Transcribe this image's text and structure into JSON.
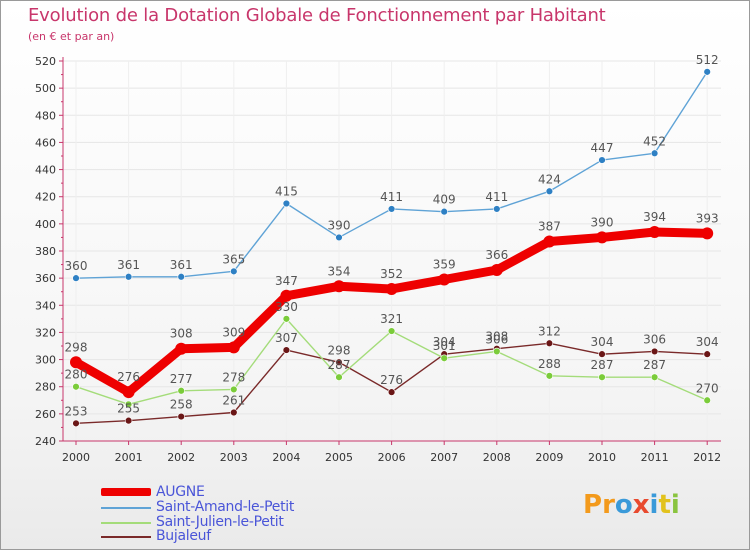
{
  "title": "Evolution de la Dotation Globale de Fonctionnement par Habitant",
  "subtitle": "(en € et par an)",
  "logo": {
    "text": "Proxiti",
    "letter_colors": [
      "#f39a1c",
      "#f39a1c",
      "#3a9ad9",
      "#e84a2f",
      "#3a9ad9",
      "#e2c21c",
      "#8ac43f"
    ]
  },
  "colors": {
    "axis": "#c8366b",
    "grid": "#e6e6e6",
    "legend_text": "#4a55d8",
    "value_label": "#555555"
  },
  "chart_data": {
    "type": "line",
    "title": "Evolution de la Dotation Globale de Fonctionnement par Habitant",
    "subtitle": "(en € et par an)",
    "x": [
      "2000",
      "2001",
      "2002",
      "2003",
      "2004",
      "2005",
      "2006",
      "2007",
      "2008",
      "2009",
      "2010",
      "2011",
      "2012"
    ],
    "ylim": [
      240,
      520
    ],
    "yticks": [
      240,
      260,
      280,
      300,
      320,
      340,
      360,
      380,
      400,
      420,
      440,
      460,
      480,
      500,
      520
    ],
    "grid": true,
    "legend_position": "bottom-left",
    "series": [
      {
        "name": "AUGNE",
        "color": "#ee0000",
        "emphasis": "thick",
        "values": [
          298,
          276,
          308,
          309,
          347,
          354,
          352,
          359,
          366,
          387,
          390,
          394,
          393
        ]
      },
      {
        "name": "Saint-Amand-le-Petit",
        "color": "#5fa3d6",
        "marker_color": "#2e80c4",
        "emphasis": "normal",
        "values": [
          360,
          361,
          361,
          365,
          415,
          390,
          411,
          409,
          411,
          424,
          447,
          452,
          512
        ]
      },
      {
        "name": "Saint-Julien-le-Petit",
        "color": "#a4dc7a",
        "marker_color": "#7bcc3a",
        "emphasis": "normal",
        "values": [
          280,
          267,
          277,
          278,
          330,
          287,
          321,
          301,
          306,
          288,
          287,
          287,
          270
        ]
      },
      {
        "name": "Bujaleuf",
        "color": "#7a2a2a",
        "marker_color": "#6a1616",
        "emphasis": "normal",
        "values": [
          253,
          255,
          258,
          261,
          307,
          298,
          276,
          304,
          308,
          312,
          304,
          306,
          304
        ]
      }
    ],
    "value_labels": {
      "AUGNE": [
        "298",
        "276",
        "308",
        "309",
        "347",
        "354",
        "352",
        "359",
        "366",
        "387",
        "390",
        "394",
        "393"
      ],
      "Saint-Amand-le-Petit": [
        "360",
        "361",
        "361",
        "365",
        "415",
        "390",
        "411",
        "409",
        "411",
        "424",
        "447",
        "452",
        "512"
      ],
      "Saint-Julien-le-Petit": [
        "280",
        "",
        "277",
        "278",
        "330",
        "287",
        "321",
        "301",
        "306",
        "288",
        "287",
        "287",
        "270"
      ],
      "Bujaleuf": [
        "253",
        "255",
        "258",
        "261",
        "307",
        "298",
        "276",
        "304",
        "308",
        "312",
        "304",
        "306",
        "304"
      ]
    }
  }
}
